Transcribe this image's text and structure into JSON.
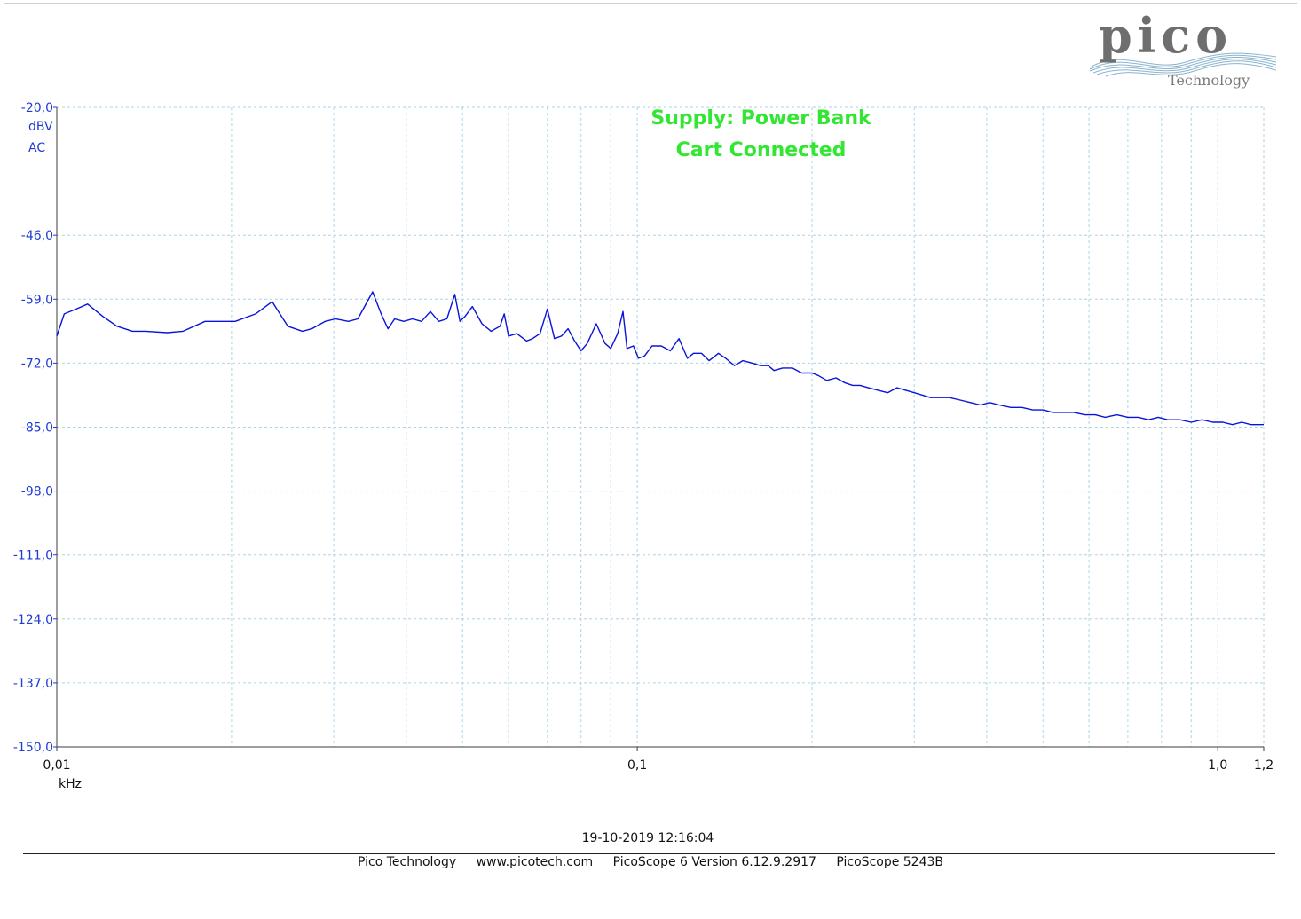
{
  "chart_data": {
    "type": "line",
    "title": "",
    "annotation_lines": [
      "Supply: Power Bank",
      "Cart Connected"
    ],
    "ylabel": "dBV",
    "ylabel_extra": "AC",
    "xlabel": "kHz",
    "x_scale": "log",
    "xlim": [
      0.01,
      1.2
    ],
    "ylim": [
      -150,
      -20
    ],
    "y_ticks": [
      -20,
      -46,
      -59,
      -72,
      -85,
      -98,
      -111,
      -124,
      -137,
      -150
    ],
    "y_tick_labels": [
      "-20,0",
      "-46,0",
      "-59,0",
      "-72,0",
      "-85,0",
      "-98,0",
      "-111,0",
      "-124,0",
      "-137,0",
      "-150,0"
    ],
    "x_tick_labels": [
      {
        "value": 0.01,
        "label": "0,01"
      },
      {
        "value": 0.1,
        "label": "0,1"
      },
      {
        "value": 1.0,
        "label": "1,0"
      },
      {
        "value": 1.2,
        "label": "1,2"
      }
    ],
    "grid": true,
    "series": [
      {
        "color": "#0a14d9",
        "x": [
          0.01,
          0.0103,
          0.0108,
          0.0113,
          0.012,
          0.0127,
          0.0135,
          0.0142,
          0.0155,
          0.0165,
          0.018,
          0.019,
          0.0203,
          0.022,
          0.0235,
          0.025,
          0.0265,
          0.0275,
          0.029,
          0.0302,
          0.0318,
          0.033,
          0.035,
          0.0362,
          0.0372,
          0.0382,
          0.0396,
          0.041,
          0.0425,
          0.044,
          0.0455,
          0.047,
          0.0485,
          0.0495,
          0.0505,
          0.052,
          0.054,
          0.056,
          0.058,
          0.059,
          0.06,
          0.062,
          0.0645,
          0.066,
          0.068,
          0.07,
          0.072,
          0.074,
          0.076,
          0.078,
          0.08,
          0.082,
          0.085,
          0.088,
          0.09,
          0.0925,
          0.0945,
          0.096,
          0.0985,
          0.1005,
          0.103,
          0.106,
          0.11,
          0.114,
          0.118,
          0.122,
          0.125,
          0.129,
          0.133,
          0.138,
          0.142,
          0.147,
          0.152,
          0.158,
          0.163,
          0.168,
          0.172,
          0.178,
          0.185,
          0.192,
          0.2,
          0.205,
          0.212,
          0.22,
          0.228,
          0.235,
          0.242,
          0.25,
          0.26,
          0.27,
          0.28,
          0.29,
          0.3,
          0.31,
          0.32,
          0.33,
          0.345,
          0.36,
          0.375,
          0.39,
          0.405,
          0.42,
          0.44,
          0.46,
          0.48,
          0.5,
          0.52,
          0.54,
          0.565,
          0.59,
          0.615,
          0.64,
          0.67,
          0.7,
          0.73,
          0.76,
          0.79,
          0.82,
          0.86,
          0.9,
          0.94,
          0.98,
          1.02,
          1.06,
          1.1,
          1.14,
          1.18,
          1.2
        ],
        "y": [
          -66.5,
          -62.0,
          -61.0,
          -60.0,
          -62.5,
          -64.5,
          -65.5,
          -65.5,
          -65.8,
          -65.5,
          -63.5,
          -63.5,
          -63.5,
          -62.0,
          -59.5,
          -64.5,
          -65.5,
          -65.0,
          -63.5,
          -63.0,
          -63.5,
          -63.0,
          -57.5,
          -62.0,
          -65.0,
          -63.0,
          -63.5,
          -63.0,
          -63.5,
          -61.5,
          -63.5,
          -63.0,
          -58.0,
          -63.5,
          -62.5,
          -60.5,
          -64.0,
          -65.5,
          -64.5,
          -62.0,
          -66.5,
          -66.0,
          -67.5,
          -67.0,
          -66.0,
          -61.0,
          -67.0,
          -66.5,
          -65.0,
          -67.5,
          -69.5,
          -68.0,
          -64.0,
          -68.0,
          -69.0,
          -66.0,
          -61.5,
          -69.0,
          -68.5,
          -71.0,
          -70.5,
          -68.5,
          -68.5,
          -69.5,
          -67.0,
          -71.0,
          -70.0,
          -70.0,
          -71.5,
          -70.0,
          -71.0,
          -72.5,
          -71.5,
          -72.0,
          -72.5,
          -72.5,
          -73.5,
          -73.0,
          -73.0,
          -74.0,
          -74.0,
          -74.5,
          -75.5,
          -75.0,
          -76.0,
          -76.5,
          -76.5,
          -77.0,
          -77.5,
          -78.0,
          -77.0,
          -77.5,
          -78.0,
          -78.5,
          -79.0,
          -79.0,
          -79.0,
          -79.5,
          -80.0,
          -80.5,
          -80.0,
          -80.5,
          -81.0,
          -81.0,
          -81.5,
          -81.5,
          -82.0,
          -82.0,
          -82.0,
          -82.5,
          -82.5,
          -83.0,
          -82.5,
          -83.0,
          -83.0,
          -83.5,
          -83.0,
          -83.5,
          -83.5,
          -84.0,
          -83.5,
          -84.0,
          -84.0,
          -84.5,
          -84.0,
          -84.5,
          -84.5,
          -84.5
        ]
      }
    ]
  },
  "logo": {
    "word": "pico",
    "sub": "Technology"
  },
  "timestamp": "19-10-2019 12:16:04",
  "footer": [
    "Pico Technology",
    "www.picotech.com",
    "PicoScope 6 Version 6.12.9.2917",
    "PicoScope 5243B"
  ]
}
